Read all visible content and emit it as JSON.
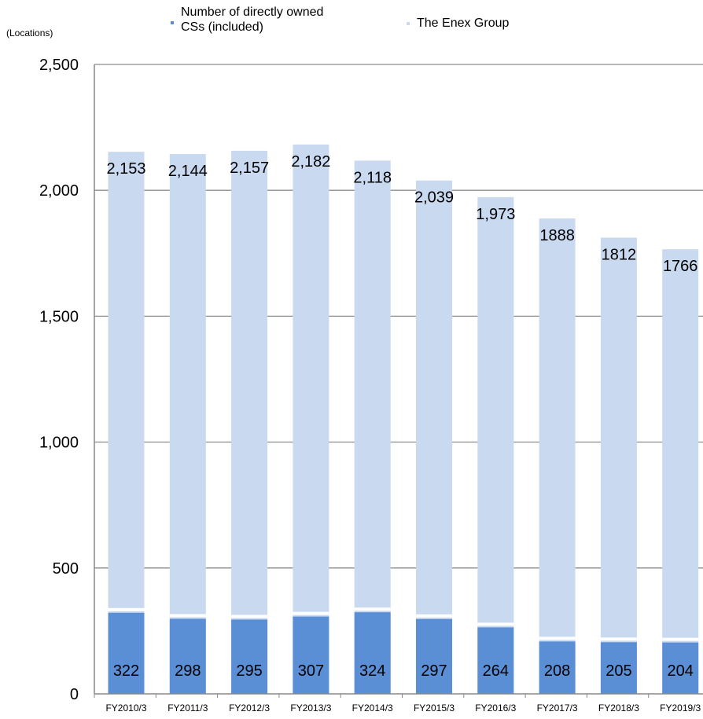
{
  "legend": {
    "owned_label_line1": "Number of directly owned",
    "owned_label_line2": "CSs (included)",
    "group_label": "The Enex Group"
  },
  "unit_label": "(Locations)",
  "colors": {
    "group": "#c9d9ef",
    "owned": "#5a8fd6",
    "axis": "#888888",
    "grid": "#8c8c8c"
  },
  "chart_data": {
    "type": "bar",
    "stacked": true,
    "categories": [
      "FY2010/3",
      "FY2011/3",
      "FY2012/3",
      "FY2013/3",
      "FY2014/3",
      "FY2015/3",
      "FY2016/3",
      "FY2017/3",
      "FY2018/3",
      "FY2019/3"
    ],
    "series": [
      {
        "name": "Number of directly owned CSs (included)",
        "values": [
          322,
          298,
          295,
          307,
          324,
          297,
          264,
          208,
          205,
          204
        ],
        "labels": [
          "322",
          "298",
          "295",
          "307",
          "324",
          "297",
          "264",
          "208",
          "205",
          "204"
        ]
      },
      {
        "name": "The Enex Group",
        "values": [
          2153,
          2144,
          2157,
          2182,
          2118,
          2039,
          1973,
          1888,
          1812,
          1766
        ],
        "labels": [
          "2,153",
          "2,144",
          "2,157",
          "2,182",
          "2,118",
          "2,039",
          "1,973",
          "1888",
          "1812",
          "1766"
        ]
      }
    ],
    "ylabel": "(Locations)",
    "ylim": [
      0,
      2500
    ],
    "yticks": [
      0,
      500,
      1000,
      1500,
      2000,
      2500
    ],
    "ytick_labels": [
      "0",
      "500",
      "1,000",
      "1,500",
      "2,000",
      "2,500"
    ],
    "grid": true
  }
}
